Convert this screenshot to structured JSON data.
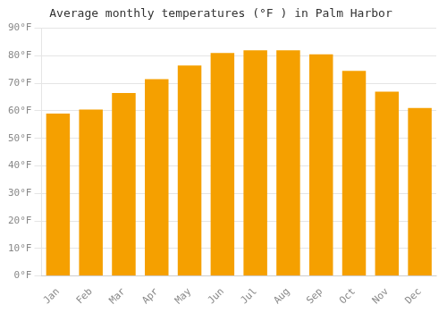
{
  "chart_data": {
    "type": "bar",
    "title": "Average monthly temperatures (°F ) in Palm Harbor",
    "categories": [
      "Jan",
      "Feb",
      "Mar",
      "Apr",
      "May",
      "Jun",
      "Jul",
      "Aug",
      "Sep",
      "Oct",
      "Nov",
      "Dec"
    ],
    "values": [
      59,
      60.5,
      66.5,
      71.5,
      76.5,
      81,
      82,
      82,
      80.5,
      74.5,
      67,
      61
    ],
    "color": "#F5A000",
    "ylim": [
      0,
      90
    ],
    "yticks": [
      {
        "value": 0,
        "label": "0°F"
      },
      {
        "value": 10,
        "label": "10°F"
      },
      {
        "value": 20,
        "label": "20°F"
      },
      {
        "value": 30,
        "label": "30°F"
      },
      {
        "value": 40,
        "label": "40°F"
      },
      {
        "value": 50,
        "label": "50°F"
      },
      {
        "value": 60,
        "label": "60°F"
      },
      {
        "value": 70,
        "label": "70°F"
      },
      {
        "value": 80,
        "label": "80°F"
      },
      {
        "value": 90,
        "label": "90°F"
      }
    ],
    "grid": true
  }
}
